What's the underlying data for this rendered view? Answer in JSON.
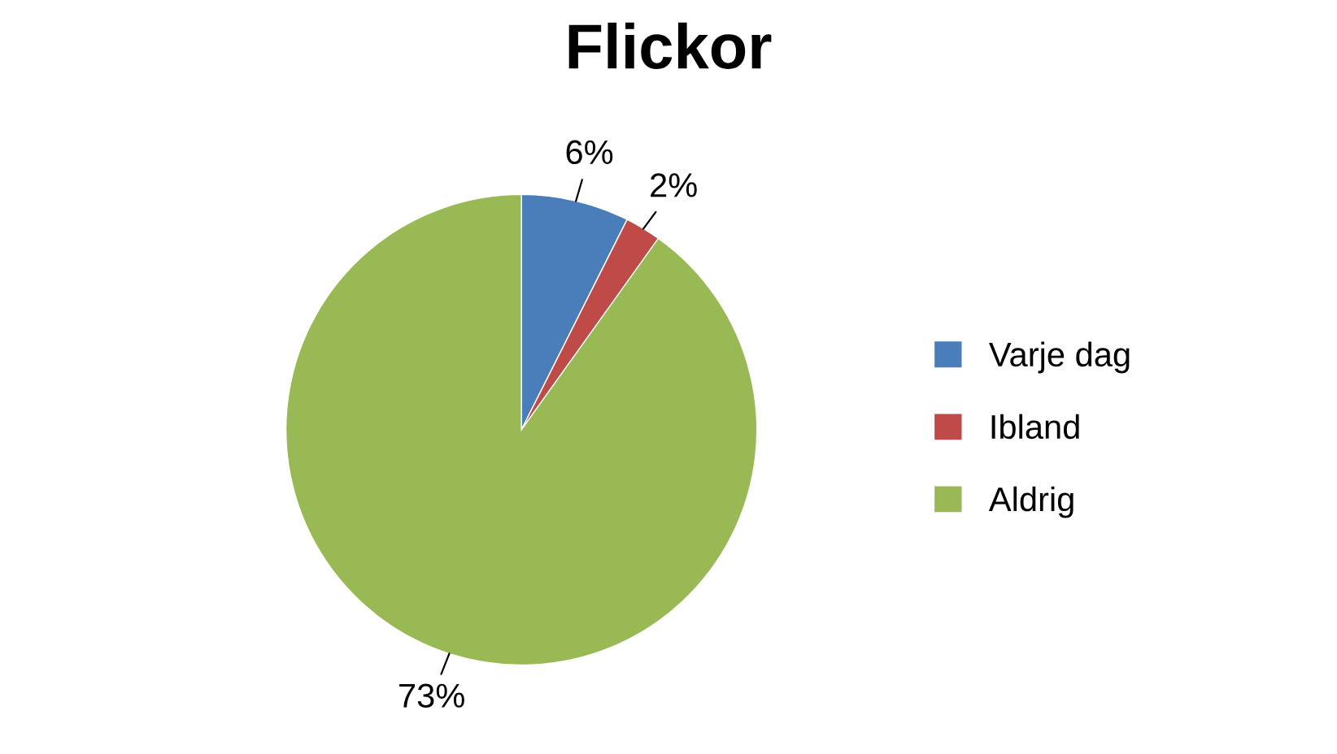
{
  "chart_data": {
    "type": "pie",
    "title": "Flickor",
    "categories": [
      "Varje dag",
      "Ibland",
      "Aldrig"
    ],
    "values": [
      6,
      2,
      73
    ],
    "colors": [
      "#4a7ebb",
      "#be4b48",
      "#98b954"
    ],
    "value_labels": [
      "6%",
      "2%",
      "73%"
    ],
    "legend": "right"
  }
}
